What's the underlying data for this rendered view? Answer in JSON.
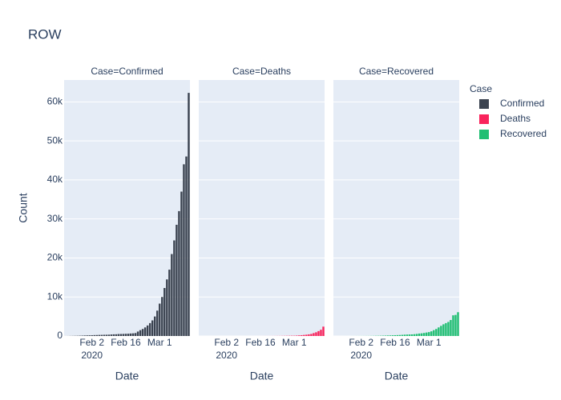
{
  "chart_data": {
    "type": "bar",
    "title": "ROW",
    "xlabel": "Date",
    "ylabel": "Count",
    "legend_title": "Case",
    "facet_titles": [
      "Case=Confirmed",
      "Case=Deaths",
      "Case=Recovered"
    ],
    "x": [
      "2020-01-22",
      "2020-01-23",
      "2020-01-24",
      "2020-01-25",
      "2020-01-26",
      "2020-01-27",
      "2020-01-28",
      "2020-01-29",
      "2020-01-30",
      "2020-01-31",
      "2020-02-01",
      "2020-02-02",
      "2020-02-03",
      "2020-02-04",
      "2020-02-05",
      "2020-02-06",
      "2020-02-07",
      "2020-02-08",
      "2020-02-09",
      "2020-02-10",
      "2020-02-11",
      "2020-02-12",
      "2020-02-13",
      "2020-02-14",
      "2020-02-15",
      "2020-02-16",
      "2020-02-17",
      "2020-02-18",
      "2020-02-19",
      "2020-02-20",
      "2020-02-21",
      "2020-02-22",
      "2020-02-23",
      "2020-02-24",
      "2020-02-25",
      "2020-02-26",
      "2020-02-27",
      "2020-02-28",
      "2020-02-29",
      "2020-03-01",
      "2020-03-02",
      "2020-03-03",
      "2020-03-04",
      "2020-03-05",
      "2020-03-06",
      "2020-03-07",
      "2020-03-08",
      "2020-03-09",
      "2020-03-10",
      "2020-03-11",
      "2020-03-12",
      "2020-03-13"
    ],
    "series": [
      {
        "name": "Confirmed",
        "color": "#3b4350",
        "values": [
          9,
          15,
          30,
          40,
          56,
          68,
          89,
          109,
          142,
          165,
          180,
          203,
          232,
          248,
          274,
          286,
          310,
          319,
          341,
          389,
          428,
          442,
          497,
          512,
          531,
          560,
          584,
          643,
          680,
          749,
          1140,
          1500,
          1800,
          2200,
          2700,
          3300,
          4000,
          5000,
          6500,
          8300,
          10000,
          12300,
          14500,
          17000,
          21000,
          24500,
          28500,
          32000,
          37000,
          44000,
          46000,
          62300
        ]
      },
      {
        "name": "Deaths",
        "color": "#f9245c",
        "values": [
          0,
          0,
          0,
          0,
          0,
          0,
          0,
          0,
          0,
          0,
          0,
          1,
          1,
          1,
          1,
          1,
          1,
          1,
          1,
          1,
          1,
          1,
          2,
          2,
          3,
          3,
          4,
          5,
          6,
          8,
          11,
          15,
          20,
          26,
          34,
          44,
          55,
          64,
          79,
          80,
          110,
          160,
          200,
          270,
          330,
          420,
          520,
          740,
          950,
          1250,
          1600,
          2400
        ]
      },
      {
        "name": "Recovered",
        "color": "#21bf73",
        "values": [
          0,
          0,
          0,
          0,
          3,
          3,
          3,
          5,
          7,
          9,
          12,
          14,
          17,
          20,
          24,
          32,
          40,
          56,
          64,
          77,
          92,
          111,
          141,
          155,
          183,
          208,
          232,
          259,
          295,
          337,
          371,
          393,
          413,
          461,
          532,
          627,
          688,
          774,
          893,
          1000,
          1200,
          1500,
          1800,
          2200,
          2600,
          3000,
          3300,
          3600,
          4100,
          5300,
          5400,
          6100
        ]
      }
    ],
    "xlim": [
      "2020-01-21T12:00:00Z",
      "2020-03-13T12:00:00Z"
    ],
    "xticks": [
      {
        "value": "2020-02-02",
        "label": "Feb 2"
      },
      {
        "value": "2020-02-16",
        "label": "Feb 16"
      },
      {
        "value": "2020-03-01",
        "label": "Mar 1"
      }
    ],
    "x_year_label": "2020",
    "ylim": [
      0,
      65600
    ],
    "yticks": [
      0,
      {
        "value": 10000,
        "label": "10k"
      },
      {
        "value": 20000,
        "label": "20k"
      },
      {
        "value": 30000,
        "label": "30k"
      },
      {
        "value": 40000,
        "label": "40k"
      },
      {
        "value": 50000,
        "label": "50k"
      },
      {
        "value": 60000,
        "label": "60k"
      }
    ],
    "grid": true
  }
}
